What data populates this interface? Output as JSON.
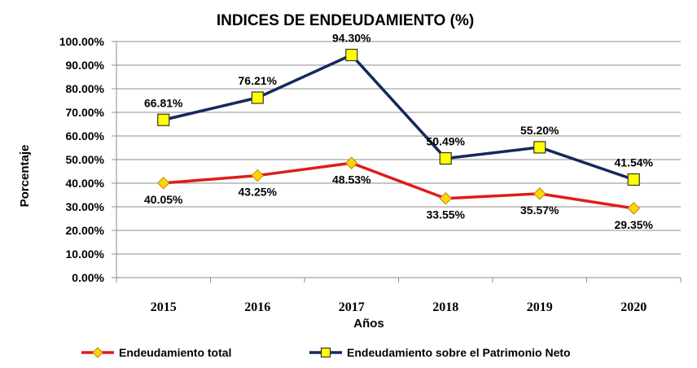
{
  "chart_data": {
    "type": "line",
    "title": "INDICES DE ENDEUDAMIENTO (%)",
    "xlabel": "Años",
    "ylabel": "Porcentaje",
    "categories": [
      "2015",
      "2016",
      "2017",
      "2018",
      "2019",
      "2020"
    ],
    "ylim": [
      0,
      100
    ],
    "y_ticks": [
      "0.00%",
      "10.00%",
      "20.00%",
      "30.00%",
      "40.00%",
      "50.00%",
      "60.00%",
      "70.00%",
      "80.00%",
      "90.00%",
      "100.00%"
    ],
    "grid": true,
    "legend_position": "bottom",
    "series": [
      {
        "name": "Endeudamiento total",
        "values": [
          40.05,
          43.25,
          48.53,
          33.55,
          35.57,
          29.35
        ],
        "labels": [
          "40.05%",
          "43.25%",
          "48.53%",
          "33.55%",
          "35.57%",
          "29.35%"
        ],
        "line_color": "#e01b1b",
        "marker": "diamond",
        "marker_color": "#ffd700"
      },
      {
        "name": "Endeudamiento sobre el Patrimonio Neto",
        "values": [
          66.81,
          76.21,
          94.3,
          50.49,
          55.2,
          41.54
        ],
        "labels": [
          "66.81%",
          "76.21%",
          "94.30%",
          "50.49%",
          "55.20%",
          "41.54%"
        ],
        "line_color": "#13295e",
        "marker": "square",
        "marker_color": "#ffff00"
      }
    ]
  }
}
